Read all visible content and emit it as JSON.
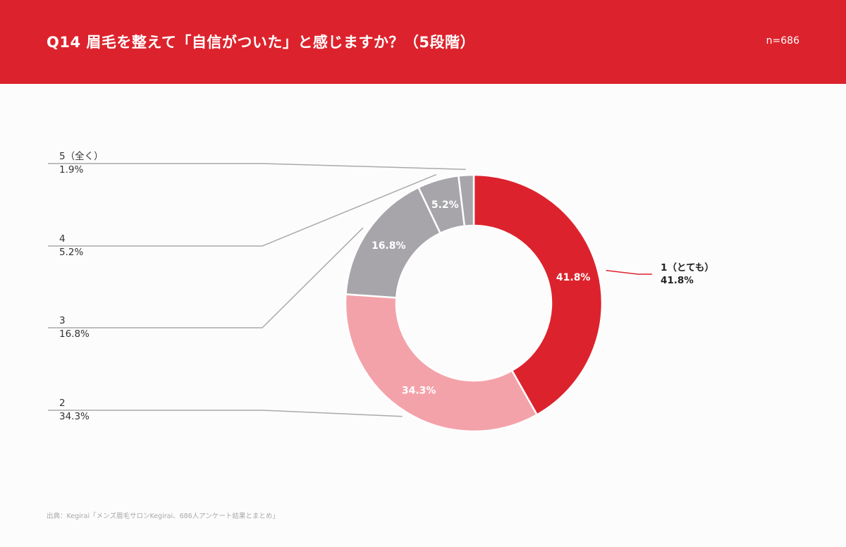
{
  "header": {
    "title": "Q14 眉毛を整えて「自信がついた」と感じますか？（5段階）",
    "sample_size": "n=686"
  },
  "source": "出典：Kegirai「メンズ眉毛サロンKegirai、686人アンケート結果とまとめ」",
  "colors": {
    "header_bg": "#dc232d",
    "leader_grey": "#aaaaaa",
    "leader_red": "#dc232d"
  },
  "chart_data": {
    "type": "pie",
    "donut": true,
    "start": "top (12 o'clock), clockwise",
    "slices": [
      {
        "category": "1（とても）",
        "value": 41.8,
        "label": "41.8%",
        "color": "#dc232d"
      },
      {
        "category": "2",
        "value": 34.3,
        "label": "34.3%",
        "color": "#f4a2aa"
      },
      {
        "category": "3",
        "value": 16.8,
        "label": "16.8%",
        "color": "#a7a5aa"
      },
      {
        "category": "4",
        "value": 5.2,
        "label": "5.2%",
        "color": "#a7a5aa"
      },
      {
        "category": "5（全く）",
        "value": 1.9,
        "label": "1.9%",
        "color": "#a7a5aa"
      }
    ]
  }
}
